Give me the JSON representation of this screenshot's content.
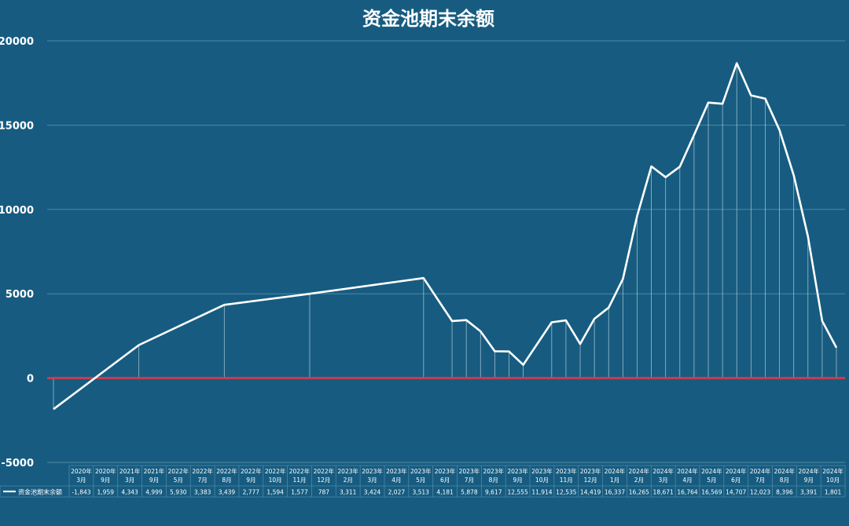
{
  "chart_data": {
    "type": "line",
    "title": "资金池期末余额",
    "ylim": [
      -5000,
      20000
    ],
    "yticks": [
      20000,
      15000,
      10000,
      5000,
      0,
      -5000
    ],
    "ytick_labels": [
      "20000",
      "15000",
      "10000",
      "5000",
      "0",
      "-5000"
    ],
    "grid": true,
    "legend": "bottom-left data table",
    "colors": {
      "background": "#175c80",
      "line": "#ffffff",
      "zero_line": "#d9394c",
      "grid": "#4f87a5"
    },
    "categories": [
      [
        "2020年",
        "3月"
      ],
      [
        "2020年",
        "9月"
      ],
      [
        "2021年",
        "3月"
      ],
      [
        "2021年",
        "9月"
      ],
      [
        "2022年",
        "5月"
      ],
      [
        "2022年",
        "7月"
      ],
      [
        "2022年",
        "8月"
      ],
      [
        "2022年",
        "9月"
      ],
      [
        "2022年",
        "10月"
      ],
      [
        "2022年",
        "11月"
      ],
      [
        "2022年",
        "12月"
      ],
      [
        "2023年",
        "2月"
      ],
      [
        "2023年",
        "3月"
      ],
      [
        "2023年",
        "4月"
      ],
      [
        "2023年",
        "5月"
      ],
      [
        "2023年",
        "6月"
      ],
      [
        "2023年",
        "7月"
      ],
      [
        "2023年",
        "8月"
      ],
      [
        "2023年",
        "9月"
      ],
      [
        "2023年",
        "10月"
      ],
      [
        "2023年",
        "11月"
      ],
      [
        "2023年",
        "12月"
      ],
      [
        "2024年",
        "1月"
      ],
      [
        "2024年",
        "2月"
      ],
      [
        "2024年",
        "3月"
      ],
      [
        "2024年",
        "4月"
      ],
      [
        "2024年",
        "5月"
      ],
      [
        "2024年",
        "6月"
      ],
      [
        "2024年",
        "7月"
      ],
      [
        "2024年",
        "8月"
      ],
      [
        "2024年",
        "9月"
      ],
      [
        "2024年",
        "10月"
      ]
    ],
    "series": [
      {
        "name": "资金池期末余额",
        "value_labels": [
          "-1,843",
          "1,959",
          "4,343",
          "4,999",
          "5,930",
          "3,383",
          "3,439",
          "2,777",
          "1,594",
          "1,577",
          "787",
          "3,311",
          "3,424",
          "2,027",
          "3,513",
          "4,181",
          "5,878",
          "9,617",
          "12,555",
          "11,914",
          "12,535",
          "14,419",
          "16,337",
          "16,265",
          "18,671",
          "16,764",
          "16,569",
          "14,707",
          "12,023",
          "8,396",
          "3,391",
          "1,801"
        ],
        "x": [
          0,
          6,
          12,
          18,
          26,
          28,
          29,
          30,
          31,
          32,
          33,
          35,
          36,
          37,
          38,
          39,
          40,
          41,
          42,
          43,
          44,
          45,
          46,
          47,
          48,
          49,
          50,
          51,
          52,
          53,
          54,
          55
        ],
        "values": [
          -1843,
          1959,
          4343,
          4999,
          5930,
          3383,
          3439,
          2777,
          1594,
          1577,
          787,
          3311,
          3424,
          2027,
          3513,
          4181,
          5878,
          9617,
          12555,
          11914,
          12535,
          14419,
          16337,
          16265,
          18671,
          16764,
          16569,
          14707,
          12023,
          8396,
          3391,
          1801
        ]
      }
    ]
  }
}
